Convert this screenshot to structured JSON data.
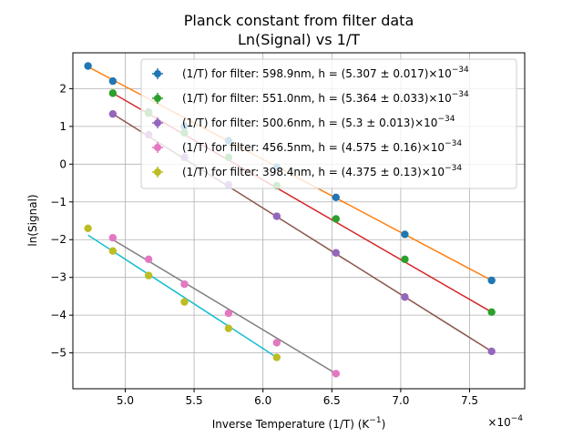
{
  "chart_data": {
    "type": "scatter",
    "title": [
      "Planck constant from filter data",
      "Ln(Signal) vs 1/T"
    ],
    "xlabel": "Inverse Temperature (1/T) (K^-1)",
    "ylabel": "ln(Signal)",
    "x_multiplier": "×10^-4",
    "xlim": [
      4.62,
      7.9
    ],
    "ylim": [
      -5.95,
      2.95
    ],
    "xticks": [
      5.0,
      5.5,
      6.0,
      6.5,
      7.0,
      7.5
    ],
    "xtick_labels": [
      "5.0",
      "5.5",
      "6.0",
      "6.5",
      "7.0",
      "7.5"
    ],
    "yticks": [
      2,
      1,
      0,
      -1,
      -2,
      -3,
      -4,
      -5
    ],
    "ytick_labels": [
      "2",
      "1",
      "0",
      "−1",
      "−2",
      "−3",
      "−4",
      "−5"
    ],
    "grid": true,
    "legend_position": "top-right",
    "series": [
      {
        "name": "(1/T) for filter: 598.9nm, h = (5.307 ± 0.017)×10^-34",
        "point_color": "#1f77b4",
        "fit_color": "#ff7f0e",
        "points": [
          [
            4.73,
            2.6
          ],
          [
            4.91,
            2.2
          ],
          [
            5.17,
            1.38
          ],
          [
            5.43,
            1.0
          ],
          [
            5.75,
            0.62
          ],
          [
            6.1,
            -0.08
          ],
          [
            6.53,
            -0.88
          ],
          [
            7.03,
            -1.86
          ],
          [
            7.66,
            -3.08
          ]
        ],
        "fit": [
          [
            4.73,
            2.58
          ],
          [
            7.66,
            -3.08
          ]
        ]
      },
      {
        "name": "(1/T) for filter: 551.0nm, h = (5.364 ± 0.033)×10^-34",
        "point_color": "#2ca02c",
        "fit_color": "#d62728",
        "points": [
          [
            4.91,
            1.88
          ],
          [
            5.17,
            1.35
          ],
          [
            5.43,
            0.83
          ],
          [
            5.75,
            0.18
          ],
          [
            6.1,
            -0.57
          ],
          [
            6.53,
            -1.45
          ],
          [
            7.03,
            -2.52
          ],
          [
            7.66,
            -3.92
          ]
        ],
        "fit": [
          [
            4.91,
            1.88
          ],
          [
            7.66,
            -3.92
          ]
        ]
      },
      {
        "name": "(1/T) for filter: 500.6nm, h = (5.3 ± 0.013)×10^-34",
        "point_color": "#9467bd",
        "fit_color": "#8c564b",
        "points": [
          [
            4.91,
            1.33
          ],
          [
            5.17,
            0.78
          ],
          [
            5.43,
            0.18
          ],
          [
            5.75,
            -0.55
          ],
          [
            6.1,
            -1.38
          ],
          [
            6.53,
            -2.35
          ],
          [
            7.03,
            -3.52
          ],
          [
            7.66,
            -4.96
          ]
        ],
        "fit": [
          [
            4.91,
            1.33
          ],
          [
            7.66,
            -4.96
          ]
        ]
      },
      {
        "name": "(1/T) for filter: 456.5nm, h = (4.575 ± 0.16)×10^-34",
        "point_color": "#e377c2",
        "fit_color": "#7f7f7f",
        "points": [
          [
            4.91,
            -1.95
          ],
          [
            5.17,
            -2.52
          ],
          [
            5.43,
            -3.18
          ],
          [
            5.75,
            -3.95
          ],
          [
            6.1,
            -4.73
          ],
          [
            6.53,
            -5.55
          ]
        ],
        "fit": [
          [
            4.91,
            -2.0
          ],
          [
            6.53,
            -5.55
          ]
        ]
      },
      {
        "name": "(1/T) for filter: 398.4nm, h = (4.375 ± 0.13)×10^-34",
        "point_color": "#bcbd22",
        "fit_color": "#17becf",
        "points": [
          [
            4.73,
            -1.7
          ],
          [
            4.91,
            -2.3
          ],
          [
            5.17,
            -2.95
          ],
          [
            5.43,
            -3.65
          ],
          [
            5.75,
            -4.35
          ],
          [
            6.1,
            -5.12
          ]
        ],
        "fit": [
          [
            4.73,
            -1.88
          ],
          [
            6.1,
            -5.12
          ]
        ]
      }
    ]
  }
}
